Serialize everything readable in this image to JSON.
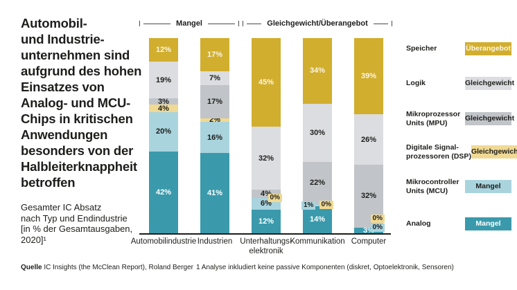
{
  "title": "Automobil-\nund Industrie-\nunternehmen sind\naufgrund des hohen\nEinsatzes von\nAnalog- und MCU-\nChips in kritischen\nAnwendungen\nbesonders von der\nHalbleiterknappheit\nbetroffen",
  "subtitle": "Gesamter IC Absatz\nnach Typ und Endindustrie\n[in % der Gesamtausgaben,\n2020]¹",
  "footer": {
    "source_label": "Quelle",
    "source_text": " IC Insights (the McClean Report), Roland Berger",
    "footnote": "1 Analyse inkludiert keine passive Komponenten (diskret, Optoelektronik, Sensoren)"
  },
  "colors": {
    "analog": "#3a9aab",
    "mcu": "#a9d4de",
    "dsp": "#f0d992",
    "mpu": "#c1c4c8",
    "logik": "#dcdde0",
    "speicher": "#d1ae2e",
    "text": "#1d1d1b",
    "light_label": "#fbf6e6"
  },
  "legend": {
    "items": [
      {
        "label": "Speicher",
        "status": "Überangebot",
        "color": "#d1ae2e",
        "text_color": "#fbf6e6"
      },
      {
        "label": "Logik",
        "status": "Gleichgewicht",
        "color": "#dcdde0",
        "text_color": "#1d1d1b"
      },
      {
        "label": "Mikroprozessor\nUnits (MPU)",
        "status": "Gleichgewicht",
        "color": "#c1c4c8",
        "text_color": "#1d1d1b"
      },
      {
        "label": "Digitale Signal-\nprozessoren (DSP)",
        "status": "Gleichgewicht",
        "color": "#f0d992",
        "text_color": "#1d1d1b"
      },
      {
        "label": "Mikrocontroller\nUnits (MCU)",
        "status": "Mangel",
        "color": "#a9d4de",
        "text_color": "#1d1d1b"
      },
      {
        "label": "Analog",
        "status": "Mangel",
        "color": "#3a9aab",
        "text_color": "#ffffff"
      }
    ]
  },
  "chart_data": {
    "type": "bar",
    "stacked": true,
    "value_unit": "%",
    "ylim": [
      0,
      100
    ],
    "grid": false,
    "categories": [
      "Automobilindustrie",
      "Industrien",
      "Unterhaltungselektronik",
      "Kommunikation",
      "Computer"
    ],
    "categories_display": [
      "Automobilindustrie",
      "Industrien",
      "Unterhaltungs-\nelektronik",
      "Kommunikation",
      "Computer"
    ],
    "series_order": "bottom-to-top",
    "series": [
      {
        "name": "Analog",
        "status": "Mangel",
        "color": "#3a9aab",
        "label_color": "#ffffff",
        "values": [
          42,
          41,
          12,
          14,
          3
        ]
      },
      {
        "name": "Mikrocontroller Units (MCU)",
        "status": "Mangel",
        "color": "#a9d4de",
        "label_color": "#1d1d1b",
        "values": [
          20,
          16,
          6,
          1,
          0
        ],
        "label_overrides": {
          "3": "badge-left",
          "4": "badge-right"
        }
      },
      {
        "name": "Digitale Signalprozessoren (DSP)",
        "status": "Gleichgewicht",
        "color": "#f0d992",
        "label_color": "#1d1d1b",
        "values": [
          4,
          2,
          0,
          0,
          0
        ],
        "label_overrides": {
          "2": "badge-right",
          "3": "badge-right",
          "4": "badge-right"
        }
      },
      {
        "name": "Mikroprozessor Units (MPU)",
        "status": "Gleichgewicht",
        "color": "#c1c4c8",
        "label_color": "#1d1d1b",
        "values": [
          3,
          17,
          4,
          22,
          32
        ]
      },
      {
        "name": "Logik",
        "status": "Gleichgewicht",
        "color": "#dcdde0",
        "label_color": "#1d1d1b",
        "values": [
          19,
          7,
          32,
          30,
          26
        ]
      },
      {
        "name": "Speicher",
        "status": "Überangebot",
        "color": "#d1ae2e",
        "label_color": "#fbf6e6",
        "values": [
          12,
          17,
          45,
          34,
          39
        ]
      }
    ],
    "group_annotations": [
      {
        "label": "Mangel",
        "categories": [
          "Automobilindustrie",
          "Industrien"
        ]
      },
      {
        "label": "Gleichgewicht/Überangebot",
        "categories": [
          "Unterhaltungselektronik",
          "Kommunikation",
          "Computer"
        ]
      }
    ]
  }
}
